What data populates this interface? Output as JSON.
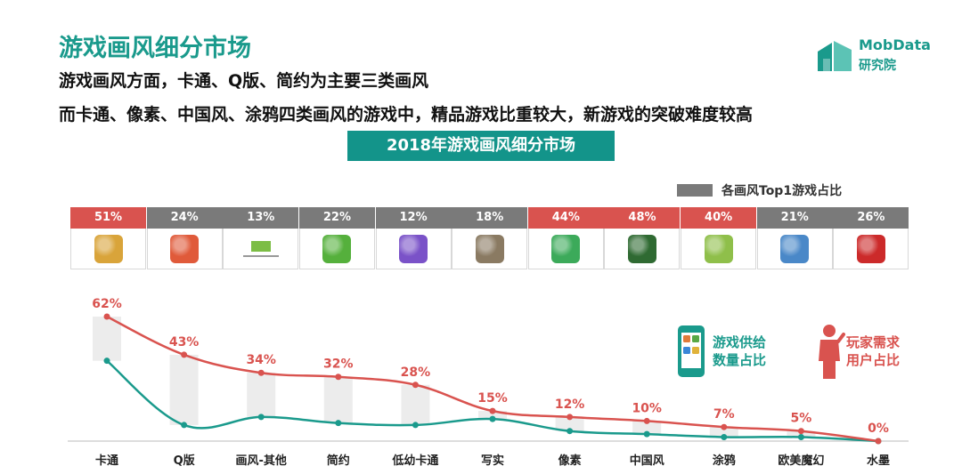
{
  "header": {
    "title": "游戏画风细分市场",
    "subtitle1": "游戏画风方面，卡通、Q版、简约为主要三类画风",
    "subtitle2": "而卡通、像素、中国风、涂鸦四类画风的游戏中，精品游戏比重较大，新游戏的突破难度较高",
    "banner": "2018年游戏画风细分市场"
  },
  "logo": {
    "name": "MobData",
    "sub": "研究院"
  },
  "top1_legend": "各画风Top1游戏占比",
  "top1": [
    {
      "value": "51%",
      "highlight": true,
      "icon": "game-icon-hero",
      "color": "#d9a43a"
    },
    {
      "value": "24%",
      "highlight": false,
      "icon": "game-icon-qcartoon",
      "color": "#e05a3a"
    },
    {
      "value": "13%",
      "highlight": false,
      "icon": "google-play-games-icon",
      "color": "#7cbd45"
    },
    {
      "value": "22%",
      "highlight": false,
      "icon": "game-icon-green-monster",
      "color": "#55b03c"
    },
    {
      "value": "12%",
      "highlight": false,
      "icon": "game-icon-blocks",
      "color": "#7a52c8"
    },
    {
      "value": "18%",
      "highlight": false,
      "icon": "game-icon-shooter",
      "color": "#8a7a62"
    },
    {
      "value": "44%",
      "highlight": true,
      "icon": "game-icon-pixel",
      "color": "#3caa5a"
    },
    {
      "value": "48%",
      "highlight": true,
      "icon": "game-icon-mahjong",
      "color": "#2f6a32"
    },
    {
      "value": "40%",
      "highlight": true,
      "icon": "game-icon-doodle",
      "color": "#8fbf4a"
    },
    {
      "value": "21%",
      "highlight": false,
      "icon": "game-icon-fantasy",
      "color": "#4a88c8"
    },
    {
      "value": "26%",
      "highlight": false,
      "icon": "game-icon-ink",
      "color": "#cc2a2a"
    }
  ],
  "colors": {
    "demand": "#d9534f",
    "supply": "#1a9a8c",
    "highlight_cell": "#d9534f",
    "normal_cell": "#7a7a7a"
  },
  "legend": {
    "supply": "游戏供给\n数量占比",
    "demand": "玩家需求\n用户占比"
  },
  "chart_data": {
    "type": "line",
    "categories": [
      "卡通",
      "Q版",
      "画风-其他",
      "简约",
      "低幼卡通",
      "写实",
      "像素",
      "中国风",
      "涂鸦",
      "欧美魔幻",
      "水墨"
    ],
    "series": [
      {
        "name": "玩家需求用户占比",
        "values": [
          62,
          43,
          34,
          32,
          28,
          15,
          12,
          10,
          7,
          5,
          0
        ],
        "labels": [
          "62%",
          "43%",
          "34%",
          "32%",
          "28%",
          "15%",
          "12%",
          "10%",
          "7%",
          "5%",
          "0%"
        ]
      },
      {
        "name": "游戏供给数量占比",
        "values": [
          40,
          8,
          12,
          9,
          8,
          11,
          5,
          3.5,
          2,
          2,
          0
        ]
      }
    ],
    "ylim": [
      0,
      70
    ],
    "grid": false,
    "legend": "right"
  }
}
